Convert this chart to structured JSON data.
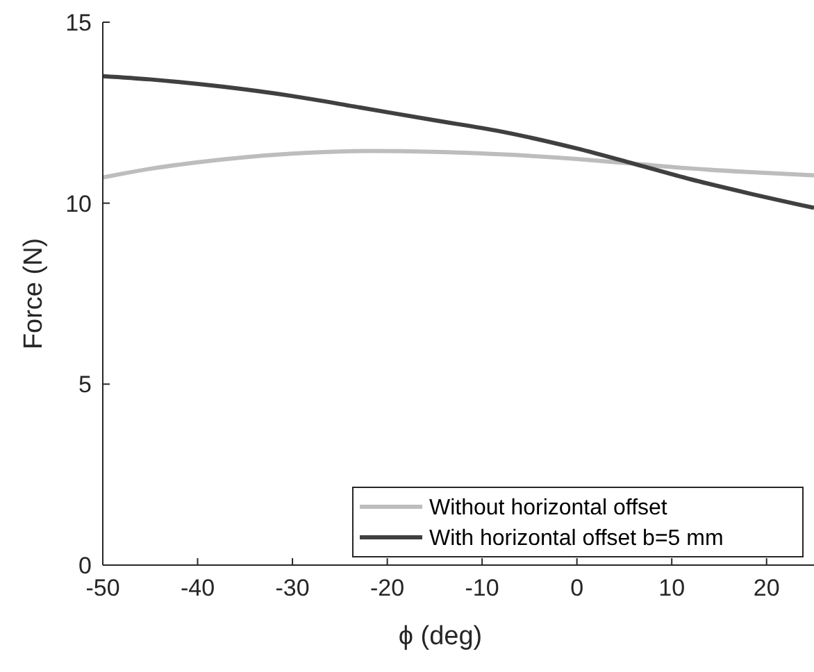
{
  "chart_data": {
    "type": "line",
    "xlabel": "ϕ (deg)",
    "ylabel": "Force (N)",
    "xlim": [
      -50,
      25
    ],
    "ylim": [
      0,
      15
    ],
    "xticks": [
      -50,
      -40,
      -30,
      -20,
      -10,
      0,
      10,
      20
    ],
    "yticks": [
      0,
      5,
      10,
      15
    ],
    "grid": false,
    "legend": "bottom right",
    "series": [
      {
        "name": "Without horizontal offset",
        "color": "#bdbdbd",
        "x": [
          -50,
          -45,
          -40,
          -35,
          -30,
          -22,
          -15,
          -8,
          0,
          6,
          12,
          18,
          25
        ],
        "values": [
          10.71,
          10.95,
          11.13,
          11.27,
          11.37,
          11.44,
          11.42,
          11.35,
          11.22,
          11.09,
          10.96,
          10.86,
          10.77
        ]
      },
      {
        "name": "With horizontal offset b=5 mm",
        "color": "#404040",
        "x": [
          -50,
          -45,
          -37.4,
          -30,
          -22.8,
          -15,
          -8.2,
          0,
          6,
          12,
          18,
          25
        ],
        "values": [
          13.51,
          13.42,
          13.22,
          12.96,
          12.64,
          12.29,
          11.99,
          11.51,
          11.09,
          10.66,
          10.28,
          9.87
        ]
      }
    ]
  }
}
